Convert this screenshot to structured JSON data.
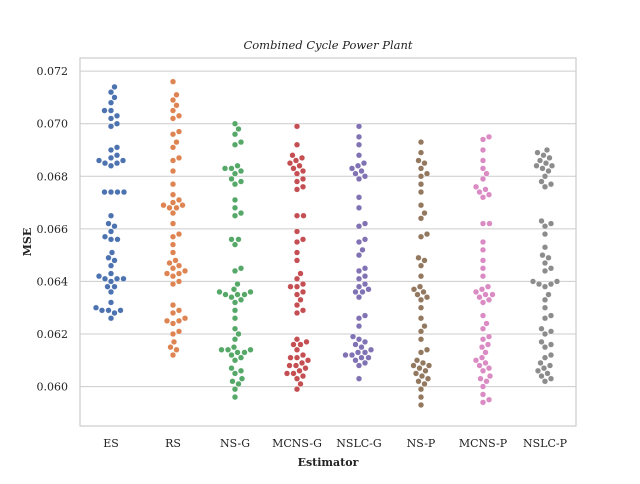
{
  "chart_data": {
    "type": "scatter",
    "subtype": "swarm",
    "title": "Combined Cycle Power Plant",
    "xlabel": "Estimator",
    "ylabel": "MSE",
    "ylim": [
      0.0585,
      0.0725
    ],
    "yticks": [
      0.06,
      0.062,
      0.064,
      0.066,
      0.068,
      0.07,
      0.072
    ],
    "ytick_labels": [
      "0.060",
      "0.062",
      "0.064",
      "0.066",
      "0.068",
      "0.070",
      "0.072"
    ],
    "grid": true,
    "categories": [
      "ES",
      "RS",
      "NS-G",
      "MCNS-G",
      "NSLC-G",
      "NS-P",
      "MCNS-P",
      "NSLC-P"
    ],
    "series": [
      {
        "category": "ES",
        "color": "#4c72b0",
        "values": [
          0.0714,
          0.0712,
          0.071,
          0.0708,
          0.0705,
          0.0705,
          0.0703,
          0.0702,
          0.07,
          0.0699,
          0.0691,
          0.069,
          0.0688,
          0.0687,
          0.0686,
          0.0686,
          0.0685,
          0.0685,
          0.0684,
          0.0674,
          0.0674,
          0.0674,
          0.0674,
          0.0665,
          0.0662,
          0.0661,
          0.0659,
          0.0657,
          0.0656,
          0.0656,
          0.0651,
          0.0649,
          0.0648,
          0.0646,
          0.0643,
          0.0642,
          0.0641,
          0.0641,
          0.0641,
          0.064,
          0.0638,
          0.0638,
          0.0636,
          0.0632,
          0.063,
          0.0629,
          0.0629,
          0.0629,
          0.0628,
          0.0626
        ]
      },
      {
        "category": "RS",
        "color": "#dd8452",
        "values": [
          0.0716,
          0.0711,
          0.0709,
          0.0707,
          0.0705,
          0.0703,
          0.0702,
          0.0697,
          0.0696,
          0.0693,
          0.0691,
          0.0687,
          0.0686,
          0.0682,
          0.0677,
          0.0673,
          0.0671,
          0.067,
          0.0669,
          0.0669,
          0.0668,
          0.0668,
          0.0666,
          0.0662,
          0.0658,
          0.0657,
          0.0654,
          0.0651,
          0.0648,
          0.0647,
          0.0646,
          0.0645,
          0.0644,
          0.0643,
          0.0643,
          0.0642,
          0.064,
          0.0639,
          0.0631,
          0.0629,
          0.0628,
          0.0626,
          0.0625,
          0.0625,
          0.0624,
          0.0621,
          0.062,
          0.0617,
          0.0615,
          0.0614,
          0.0612
        ]
      },
      {
        "category": "NS-G",
        "color": "#55a868",
        "values": [
          0.07,
          0.0698,
          0.0696,
          0.0693,
          0.0692,
          0.0684,
          0.0683,
          0.0683,
          0.0682,
          0.0681,
          0.0679,
          0.0678,
          0.0677,
          0.0671,
          0.0668,
          0.0666,
          0.0665,
          0.0656,
          0.0656,
          0.0654,
          0.0645,
          0.0644,
          0.0639,
          0.0637,
          0.0636,
          0.0636,
          0.0635,
          0.0635,
          0.0635,
          0.0634,
          0.0633,
          0.0632,
          0.0629,
          0.0626,
          0.0622,
          0.062,
          0.0618,
          0.0615,
          0.0614,
          0.0614,
          0.0614,
          0.0613,
          0.0613,
          0.0612,
          0.0611,
          0.061,
          0.0607,
          0.0606,
          0.0605,
          0.0603,
          0.0602,
          0.0601,
          0.0599,
          0.0596
        ]
      },
      {
        "category": "MCNS-G",
        "color": "#c44e52",
        "values": [
          0.0699,
          0.0692,
          0.0688,
          0.0687,
          0.0686,
          0.0685,
          0.0684,
          0.0683,
          0.0682,
          0.0681,
          0.0679,
          0.0678,
          0.0676,
          0.0675,
          0.0665,
          0.0665,
          0.0659,
          0.0656,
          0.0655,
          0.0651,
          0.0648,
          0.0643,
          0.0641,
          0.0639,
          0.0638,
          0.0638,
          0.0636,
          0.0635,
          0.0633,
          0.0631,
          0.0629,
          0.0628,
          0.0618,
          0.0617,
          0.0616,
          0.0616,
          0.0614,
          0.0612,
          0.0611,
          0.0611,
          0.061,
          0.0609,
          0.0608,
          0.0608,
          0.0607,
          0.0606,
          0.0605,
          0.0605,
          0.0604,
          0.0603,
          0.0601,
          0.0599
        ]
      },
      {
        "category": "NSLC-G",
        "color": "#8172b3",
        "values": [
          0.0699,
          0.0695,
          0.0692,
          0.0688,
          0.0685,
          0.0684,
          0.0683,
          0.0682,
          0.0681,
          0.068,
          0.0679,
          0.0672,
          0.0668,
          0.0662,
          0.0661,
          0.0656,
          0.0655,
          0.0652,
          0.065,
          0.0645,
          0.0644,
          0.0642,
          0.0641,
          0.0639,
          0.0638,
          0.0637,
          0.0636,
          0.0636,
          0.0634,
          0.0627,
          0.0626,
          0.0623,
          0.0619,
          0.0618,
          0.0617,
          0.0616,
          0.0615,
          0.0614,
          0.0613,
          0.0613,
          0.0612,
          0.0612,
          0.0611,
          0.0611,
          0.061,
          0.0609,
          0.0608,
          0.0603
        ]
      },
      {
        "category": "NS-P",
        "color": "#937860",
        "values": [
          0.0693,
          0.0689,
          0.0686,
          0.0685,
          0.0683,
          0.0681,
          0.068,
          0.0677,
          0.0674,
          0.0669,
          0.0666,
          0.0664,
          0.0658,
          0.0657,
          0.0649,
          0.0648,
          0.0646,
          0.0642,
          0.0638,
          0.0637,
          0.0636,
          0.0635,
          0.0634,
          0.0633,
          0.063,
          0.0626,
          0.0623,
          0.0621,
          0.0618,
          0.0614,
          0.0613,
          0.061,
          0.0609,
          0.0608,
          0.0608,
          0.0607,
          0.0606,
          0.0605,
          0.0604,
          0.0603,
          0.0602,
          0.0601,
          0.0599,
          0.0596,
          0.0593
        ]
      },
      {
        "category": "MCNS-P",
        "color": "#da8bc3",
        "values": [
          0.0695,
          0.0694,
          0.069,
          0.0686,
          0.0683,
          0.0681,
          0.0679,
          0.0676,
          0.0675,
          0.0674,
          0.0673,
          0.0672,
          0.0662,
          0.0662,
          0.0655,
          0.0652,
          0.0648,
          0.0645,
          0.0642,
          0.0638,
          0.0637,
          0.0636,
          0.0635,
          0.0635,
          0.0634,
          0.0633,
          0.0632,
          0.0627,
          0.0624,
          0.0622,
          0.0619,
          0.0618,
          0.0616,
          0.0615,
          0.0613,
          0.0611,
          0.061,
          0.0609,
          0.0608,
          0.0607,
          0.0606,
          0.0604,
          0.0603,
          0.0602,
          0.06,
          0.0597,
          0.0595,
          0.0594
        ]
      },
      {
        "category": "NSLC-P",
        "color": "#8c8c8c",
        "values": [
          0.069,
          0.0689,
          0.0688,
          0.0687,
          0.0686,
          0.0685,
          0.0684,
          0.0684,
          0.0683,
          0.0682,
          0.068,
          0.0678,
          0.0677,
          0.0676,
          0.0663,
          0.0662,
          0.0661,
          0.0658,
          0.0653,
          0.065,
          0.0649,
          0.0647,
          0.0645,
          0.0644,
          0.064,
          0.064,
          0.0639,
          0.0639,
          0.0638,
          0.0635,
          0.0633,
          0.063,
          0.0627,
          0.0626,
          0.0622,
          0.0621,
          0.062,
          0.0617,
          0.0616,
          0.0615,
          0.0612,
          0.0611,
          0.0609,
          0.0608,
          0.0607,
          0.0606,
          0.0605,
          0.0604,
          0.0603,
          0.0602
        ]
      }
    ]
  }
}
